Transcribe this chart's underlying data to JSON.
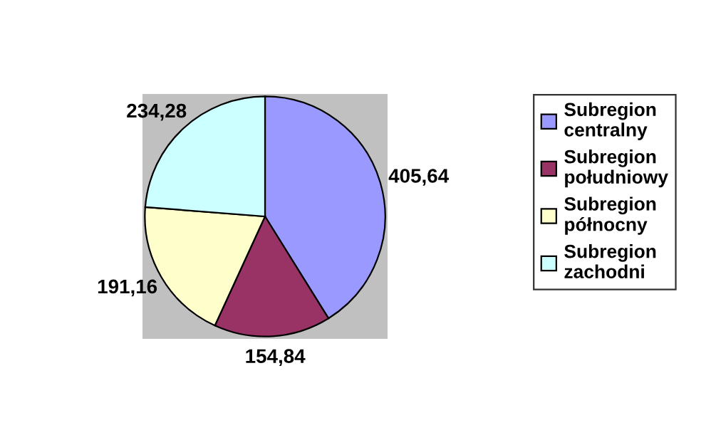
{
  "chart_data": {
    "type": "pie",
    "categories": [
      "Subregion centralny",
      "Subregion południowy",
      "Subregion północny",
      "Subregion zachodni"
    ],
    "values": [
      405.64,
      154.84,
      191.16,
      234.28
    ],
    "value_labels": [
      "405,64",
      "154,84",
      "191,16",
      "234,28"
    ],
    "colors": [
      "#9999ff",
      "#993366",
      "#ffffcc",
      "#ccffff"
    ],
    "legend": "right"
  }
}
